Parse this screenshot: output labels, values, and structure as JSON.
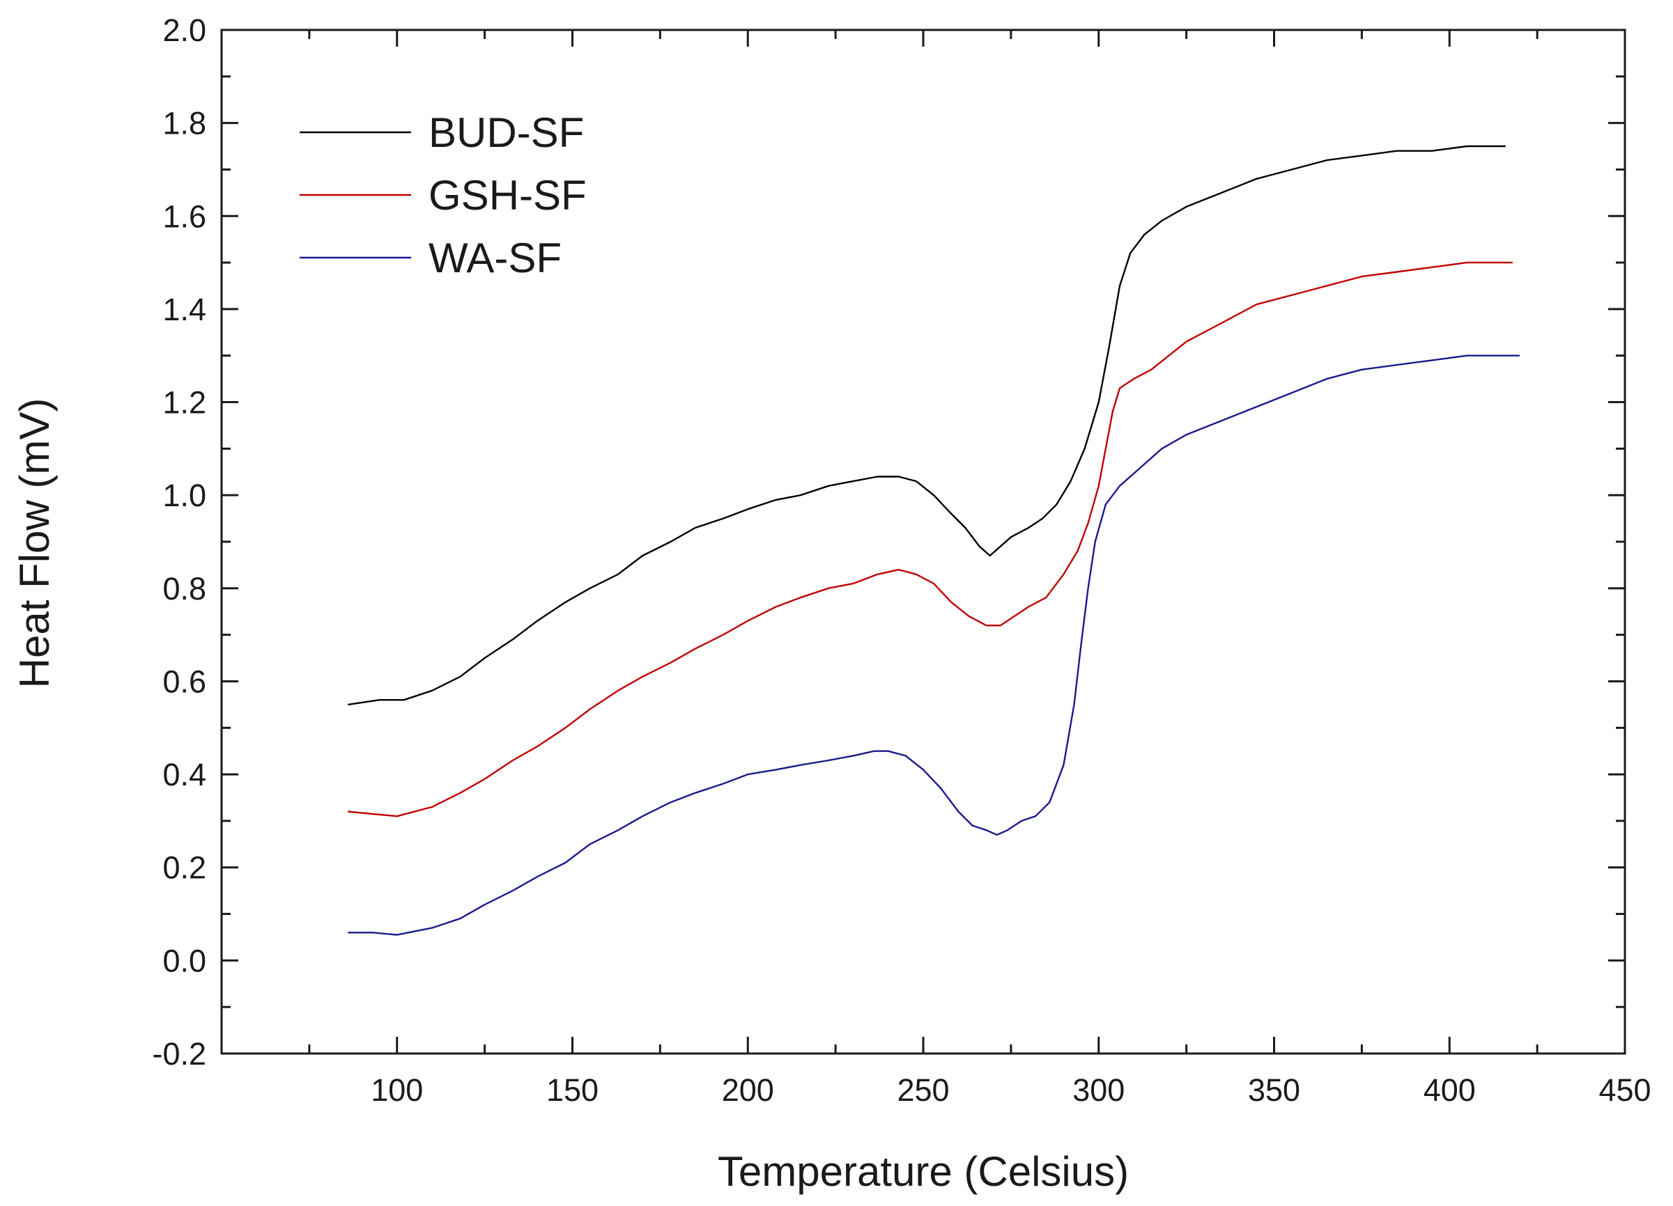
{
  "chart_data": {
    "type": "line",
    "title": "",
    "xlabel": "Temperature (Celsius)",
    "ylabel": "Heat Flow (mV)",
    "xlim": [
      50,
      450
    ],
    "ylim": [
      -0.2,
      2.0
    ],
    "xticks": [
      100,
      150,
      200,
      250,
      300,
      350,
      400,
      450
    ],
    "xtick_labels": [
      "100",
      "150",
      "200",
      "250",
      "300",
      "350",
      "400",
      "450"
    ],
    "yticks": [
      -0.2,
      0.0,
      0.2,
      0.4,
      0.6,
      0.8,
      1.0,
      1.2,
      1.4,
      1.6,
      1.8,
      2.0
    ],
    "ytick_labels": [
      "-0.2",
      "0.0",
      "0.2",
      "0.4",
      "0.6",
      "0.8",
      "1.0",
      "1.2",
      "1.4",
      "1.6",
      "1.8",
      "2.0"
    ],
    "grid": false,
    "legend_position": "top-left",
    "series": [
      {
        "name": "BUD-SF",
        "color": "#000000",
        "points": [
          [
            86,
            0.55
          ],
          [
            95,
            0.56
          ],
          [
            102,
            0.56
          ],
          [
            110,
            0.58
          ],
          [
            118,
            0.61
          ],
          [
            125,
            0.65
          ],
          [
            133,
            0.69
          ],
          [
            140,
            0.73
          ],
          [
            148,
            0.77
          ],
          [
            155,
            0.8
          ],
          [
            163,
            0.83
          ],
          [
            170,
            0.87
          ],
          [
            178,
            0.9
          ],
          [
            185,
            0.93
          ],
          [
            193,
            0.95
          ],
          [
            200,
            0.97
          ],
          [
            208,
            0.99
          ],
          [
            215,
            1.0
          ],
          [
            223,
            1.02
          ],
          [
            230,
            1.03
          ],
          [
            237,
            1.04
          ],
          [
            243,
            1.04
          ],
          [
            248,
            1.03
          ],
          [
            253,
            1.0
          ],
          [
            258,
            0.96
          ],
          [
            262,
            0.93
          ],
          [
            266,
            0.89
          ],
          [
            269,
            0.87
          ],
          [
            272,
            0.89
          ],
          [
            275,
            0.91
          ],
          [
            280,
            0.93
          ],
          [
            284,
            0.95
          ],
          [
            288,
            0.98
          ],
          [
            292,
            1.03
          ],
          [
            296,
            1.1
          ],
          [
            300,
            1.2
          ],
          [
            303,
            1.32
          ],
          [
            306,
            1.45
          ],
          [
            309,
            1.52
          ],
          [
            313,
            1.56
          ],
          [
            318,
            1.59
          ],
          [
            325,
            1.62
          ],
          [
            335,
            1.65
          ],
          [
            345,
            1.68
          ],
          [
            355,
            1.7
          ],
          [
            365,
            1.72
          ],
          [
            375,
            1.73
          ],
          [
            385,
            1.74
          ],
          [
            395,
            1.74
          ],
          [
            405,
            1.75
          ],
          [
            416,
            1.75
          ]
        ]
      },
      {
        "name": "GSH-SF",
        "color": "#c00000",
        "points": [
          [
            86,
            0.32
          ],
          [
            93,
            0.315
          ],
          [
            100,
            0.31
          ],
          [
            110,
            0.33
          ],
          [
            118,
            0.36
          ],
          [
            125,
            0.39
          ],
          [
            133,
            0.43
          ],
          [
            140,
            0.46
          ],
          [
            148,
            0.5
          ],
          [
            155,
            0.54
          ],
          [
            163,
            0.58
          ],
          [
            170,
            0.61
          ],
          [
            178,
            0.64
          ],
          [
            185,
            0.67
          ],
          [
            193,
            0.7
          ],
          [
            200,
            0.73
          ],
          [
            208,
            0.76
          ],
          [
            215,
            0.78
          ],
          [
            223,
            0.8
          ],
          [
            230,
            0.81
          ],
          [
            237,
            0.83
          ],
          [
            243,
            0.84
          ],
          [
            248,
            0.83
          ],
          [
            253,
            0.81
          ],
          [
            258,
            0.77
          ],
          [
            263,
            0.74
          ],
          [
            268,
            0.72
          ],
          [
            272,
            0.72
          ],
          [
            276,
            0.74
          ],
          [
            280,
            0.76
          ],
          [
            285,
            0.78
          ],
          [
            290,
            0.83
          ],
          [
            294,
            0.88
          ],
          [
            297,
            0.94
          ],
          [
            300,
            1.02
          ],
          [
            302,
            1.1
          ],
          [
            304,
            1.18
          ],
          [
            306,
            1.23
          ],
          [
            310,
            1.25
          ],
          [
            315,
            1.27
          ],
          [
            320,
            1.3
          ],
          [
            325,
            1.33
          ],
          [
            335,
            1.37
          ],
          [
            345,
            1.41
          ],
          [
            355,
            1.43
          ],
          [
            365,
            1.45
          ],
          [
            375,
            1.47
          ],
          [
            385,
            1.48
          ],
          [
            395,
            1.49
          ],
          [
            405,
            1.5
          ],
          [
            418,
            1.5
          ]
        ]
      },
      {
        "name": "WA-SF",
        "color": "#1a1a8c",
        "points": [
          [
            86,
            0.06
          ],
          [
            93,
            0.06
          ],
          [
            100,
            0.055
          ],
          [
            110,
            0.07
          ],
          [
            118,
            0.09
          ],
          [
            125,
            0.12
          ],
          [
            133,
            0.15
          ],
          [
            140,
            0.18
          ],
          [
            148,
            0.21
          ],
          [
            155,
            0.25
          ],
          [
            163,
            0.28
          ],
          [
            170,
            0.31
          ],
          [
            178,
            0.34
          ],
          [
            185,
            0.36
          ],
          [
            193,
            0.38
          ],
          [
            200,
            0.4
          ],
          [
            208,
            0.41
          ],
          [
            215,
            0.42
          ],
          [
            223,
            0.43
          ],
          [
            230,
            0.44
          ],
          [
            236,
            0.45
          ],
          [
            240,
            0.45
          ],
          [
            245,
            0.44
          ],
          [
            250,
            0.41
          ],
          [
            255,
            0.37
          ],
          [
            260,
            0.32
          ],
          [
            264,
            0.29
          ],
          [
            268,
            0.28
          ],
          [
            271,
            0.27
          ],
          [
            274,
            0.28
          ],
          [
            278,
            0.3
          ],
          [
            282,
            0.31
          ],
          [
            286,
            0.34
          ],
          [
            290,
            0.42
          ],
          [
            293,
            0.55
          ],
          [
            295,
            0.68
          ],
          [
            297,
            0.8
          ],
          [
            299,
            0.9
          ],
          [
            302,
            0.98
          ],
          [
            306,
            1.02
          ],
          [
            312,
            1.06
          ],
          [
            318,
            1.1
          ],
          [
            325,
            1.13
          ],
          [
            335,
            1.16
          ],
          [
            345,
            1.19
          ],
          [
            355,
            1.22
          ],
          [
            365,
            1.25
          ],
          [
            375,
            1.27
          ],
          [
            385,
            1.28
          ],
          [
            395,
            1.29
          ],
          [
            405,
            1.3
          ],
          [
            420,
            1.3
          ]
        ]
      }
    ]
  }
}
